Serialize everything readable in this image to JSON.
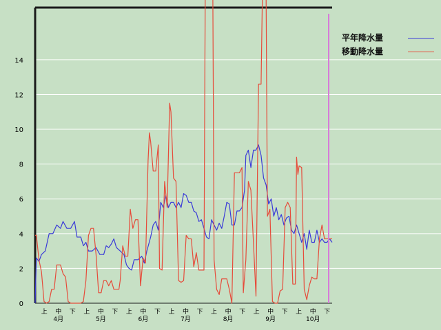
{
  "chart_data": {
    "type": "line",
    "title": "",
    "xlabel": "",
    "ylabel": "",
    "ylim": [
      0,
      17
    ],
    "yticks": [
      0,
      2,
      4,
      6,
      8,
      10,
      12,
      14
    ],
    "grid": true,
    "legend_position": "top-right",
    "period_labels": [
      "上",
      "中",
      "下"
    ],
    "months": [
      "4月",
      "5月",
      "6月",
      "7月",
      "8月",
      "9月",
      "10月"
    ],
    "x_count": 214,
    "colors": {
      "background": "#c7e0c5",
      "grid": "#ffffff",
      "axis": "#1a1a1a",
      "marker_line": "#d77bd9"
    },
    "series": [
      {
        "name": "平年降水量",
        "color": "#3a3ad8",
        "keypoints": [
          [
            0,
            0.0
          ],
          [
            1,
            2.6
          ],
          [
            3,
            2.4
          ],
          [
            5,
            2.8
          ],
          [
            8,
            3.0
          ],
          [
            11,
            4.0
          ],
          [
            14,
            4.0
          ],
          [
            17,
            4.5
          ],
          [
            20,
            4.3
          ],
          [
            22,
            4.7
          ],
          [
            25,
            4.3
          ],
          [
            28,
            4.3
          ],
          [
            31,
            4.7
          ],
          [
            33,
            3.8
          ],
          [
            36,
            3.8
          ],
          [
            38,
            3.3
          ],
          [
            40,
            3.5
          ],
          [
            42,
            3.0
          ],
          [
            45,
            3.0
          ],
          [
            48,
            3.2
          ],
          [
            51,
            2.8
          ],
          [
            54,
            2.8
          ],
          [
            56,
            3.3
          ],
          [
            58,
            3.2
          ],
          [
            60,
            3.4
          ],
          [
            62,
            3.7
          ],
          [
            64,
            3.2
          ],
          [
            67,
            3.0
          ],
          [
            70,
            2.8
          ],
          [
            72,
            2.2
          ],
          [
            74,
            2.0
          ],
          [
            76,
            1.9
          ],
          [
            78,
            2.5
          ],
          [
            81,
            2.5
          ],
          [
            84,
            2.7
          ],
          [
            86,
            2.3
          ],
          [
            88,
            3.0
          ],
          [
            91,
            3.8
          ],
          [
            93,
            4.5
          ],
          [
            95,
            4.7
          ],
          [
            97,
            4.2
          ],
          [
            99,
            5.8
          ],
          [
            101,
            5.5
          ],
          [
            103,
            6.2
          ],
          [
            105,
            5.5
          ],
          [
            107,
            5.8
          ],
          [
            109,
            5.8
          ],
          [
            111,
            5.5
          ],
          [
            113,
            5.8
          ],
          [
            115,
            5.5
          ],
          [
            117,
            6.3
          ],
          [
            119,
            6.2
          ],
          [
            121,
            5.8
          ],
          [
            123,
            5.8
          ],
          [
            125,
            5.3
          ],
          [
            127,
            5.2
          ],
          [
            129,
            4.7
          ],
          [
            131,
            4.8
          ],
          [
            133,
            4.3
          ],
          [
            135,
            3.8
          ],
          [
            137,
            3.7
          ],
          [
            139,
            4.8
          ],
          [
            141,
            4.5
          ],
          [
            143,
            4.2
          ],
          [
            145,
            4.6
          ],
          [
            147,
            4.3
          ],
          [
            149,
            5.0
          ],
          [
            151,
            5.8
          ],
          [
            153,
            5.7
          ],
          [
            155,
            4.5
          ],
          [
            157,
            4.5
          ],
          [
            159,
            5.3
          ],
          [
            161,
            5.3
          ],
          [
            163,
            5.5
          ],
          [
            165,
            6.5
          ],
          [
            166,
            8.5
          ],
          [
            168,
            8.8
          ],
          [
            170,
            7.8
          ],
          [
            172,
            8.8
          ],
          [
            174,
            8.8
          ],
          [
            176,
            9.1
          ],
          [
            178,
            8.5
          ],
          [
            180,
            7.2
          ],
          [
            182,
            6.8
          ],
          [
            184,
            5.7
          ],
          [
            186,
            6.0
          ],
          [
            188,
            5.0
          ],
          [
            190,
            5.5
          ],
          [
            192,
            4.8
          ],
          [
            194,
            5.1
          ],
          [
            196,
            4.5
          ],
          [
            198,
            4.9
          ],
          [
            200,
            5.0
          ],
          [
            202,
            4.2
          ],
          [
            204,
            4.0
          ],
          [
            206,
            4.5
          ],
          [
            208,
            4.0
          ],
          [
            210,
            3.5
          ],
          [
            212,
            4.0
          ],
          [
            214,
            3.1
          ],
          [
            216,
            4.2
          ],
          [
            218,
            3.5
          ],
          [
            220,
            3.5
          ],
          [
            222,
            4.2
          ],
          [
            224,
            3.5
          ],
          [
            226,
            3.7
          ],
          [
            228,
            3.5
          ],
          [
            230,
            3.5
          ],
          [
            232,
            3.7
          ],
          [
            234,
            3.5
          ]
        ]
      },
      {
        "name": "移動降水量",
        "color": "#e64b3a",
        "keypoints": [
          [
            0,
            3.9
          ],
          [
            1,
            3.9
          ],
          [
            3,
            2.5
          ],
          [
            5,
            1.8
          ],
          [
            7,
            0.1
          ],
          [
            9,
            0.0
          ],
          [
            11,
            0.1
          ],
          [
            13,
            0.8
          ],
          [
            15,
            0.8
          ],
          [
            17,
            2.2
          ],
          [
            20,
            2.2
          ],
          [
            22,
            1.7
          ],
          [
            24,
            1.5
          ],
          [
            26,
            0.1
          ],
          [
            28,
            0.0
          ],
          [
            30,
            0.0
          ],
          [
            32,
            0.0
          ],
          [
            34,
            0.0
          ],
          [
            36,
            0.0
          ],
          [
            38,
            0.1
          ],
          [
            40,
            1.3
          ],
          [
            42,
            3.9
          ],
          [
            44,
            4.3
          ],
          [
            46,
            4.3
          ],
          [
            48,
            2.8
          ],
          [
            50,
            0.6
          ],
          [
            52,
            0.6
          ],
          [
            54,
            1.3
          ],
          [
            56,
            1.3
          ],
          [
            58,
            1.0
          ],
          [
            60,
            1.3
          ],
          [
            62,
            0.8
          ],
          [
            64,
            0.8
          ],
          [
            66,
            0.8
          ],
          [
            67,
            1.3
          ],
          [
            69,
            3.3
          ],
          [
            71,
            2.7
          ],
          [
            73,
            2.7
          ],
          [
            75,
            5.4
          ],
          [
            77,
            4.3
          ],
          [
            79,
            4.8
          ],
          [
            81,
            4.8
          ],
          [
            83,
            1.0
          ],
          [
            85,
            2.6
          ],
          [
            87,
            2.3
          ],
          [
            89,
            8.2
          ],
          [
            90,
            9.8
          ],
          [
            91,
            9.3
          ],
          [
            93,
            7.6
          ],
          [
            95,
            7.6
          ],
          [
            97,
            9.1
          ],
          [
            98,
            2.0
          ],
          [
            100,
            1.9
          ],
          [
            102,
            7.0
          ],
          [
            104,
            5.5
          ],
          [
            106,
            11.5
          ],
          [
            107,
            11.0
          ],
          [
            109,
            7.2
          ],
          [
            111,
            7.0
          ],
          [
            113,
            1.3
          ],
          [
            115,
            1.2
          ],
          [
            117,
            1.3
          ],
          [
            119,
            3.9
          ],
          [
            121,
            3.7
          ],
          [
            123,
            3.7
          ],
          [
            125,
            2.1
          ],
          [
            127,
            2.9
          ],
          [
            129,
            1.9
          ],
          [
            131,
            1.9
          ],
          [
            133,
            1.9
          ],
          [
            134,
            17.5
          ],
          [
            136,
            17.5
          ],
          [
            140,
            17.5
          ],
          [
            141,
            2.5
          ],
          [
            143,
            0.8
          ],
          [
            145,
            0.5
          ],
          [
            147,
            1.4
          ],
          [
            149,
            1.4
          ],
          [
            151,
            1.4
          ],
          [
            153,
            0.8
          ],
          [
            155,
            0.0
          ],
          [
            157,
            7.5
          ],
          [
            159,
            7.5
          ],
          [
            161,
            7.5
          ],
          [
            163,
            7.8
          ],
          [
            164,
            0.6
          ],
          [
            166,
            2.5
          ],
          [
            168,
            7.0
          ],
          [
            170,
            6.5
          ],
          [
            172,
            3.5
          ],
          [
            174,
            0.4
          ],
          [
            176,
            12.6
          ],
          [
            178,
            12.6
          ],
          [
            179,
            17.5
          ],
          [
            182,
            17.5
          ],
          [
            183,
            5.0
          ],
          [
            185,
            5.4
          ],
          [
            187,
            0.1
          ],
          [
            189,
            0.0
          ],
          [
            191,
            0.0
          ],
          [
            193,
            0.7
          ],
          [
            195,
            0.8
          ],
          [
            197,
            5.5
          ],
          [
            199,
            5.8
          ],
          [
            201,
            5.5
          ],
          [
            203,
            1.1
          ],
          [
            205,
            1.1
          ],
          [
            206,
            8.4
          ],
          [
            207,
            7.4
          ],
          [
            208,
            7.9
          ],
          [
            210,
            7.8
          ],
          [
            212,
            0.8
          ],
          [
            214,
            0.2
          ],
          [
            216,
            1.0
          ],
          [
            218,
            1.5
          ],
          [
            220,
            1.4
          ],
          [
            222,
            1.4
          ],
          [
            224,
            3.7
          ],
          [
            226,
            4.5
          ],
          [
            228,
            3.7
          ],
          [
            230,
            3.7
          ],
          [
            232,
            3.7
          ],
          [
            234,
            3.7
          ]
        ]
      }
    ]
  }
}
